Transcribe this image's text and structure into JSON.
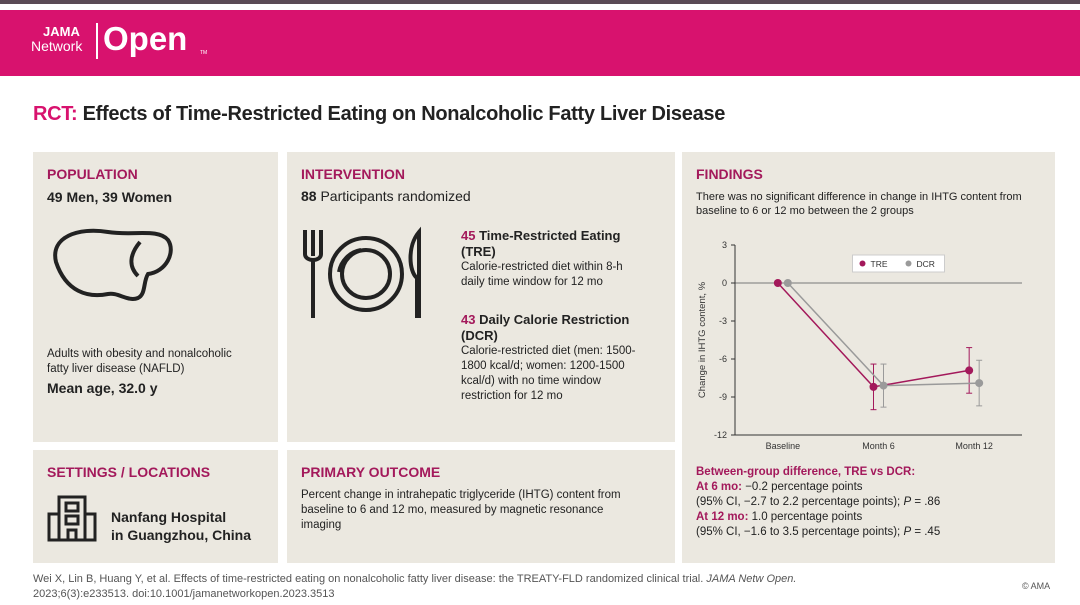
{
  "header": {
    "logo_top": "JAMA",
    "logo_bottom": "Network",
    "logo_main": "Open",
    "logo_tm": "TM"
  },
  "title": {
    "prefix": "RCT:",
    "text": "Effects of Time-Restricted Eating on Nonalcoholic Fatty Liver Disease"
  },
  "population": {
    "heading": "POPULATION",
    "counts": "49 Men, 39 Women",
    "description": "Adults with obesity and nonalcoholic fatty liver disease (NAFLD)",
    "mean_age": "Mean age, 32.0 y"
  },
  "intervention": {
    "heading": "INTERVENTION",
    "randomized_n": "88",
    "randomized_text": "Participants randomized",
    "groups": [
      {
        "n": "45",
        "name": "Time-Restricted Eating (TRE)",
        "description": "Calorie-restricted diet within 8-h daily time window for 12 mo"
      },
      {
        "n": "43",
        "name": "Daily Calorie Restriction (DCR)",
        "description": "Calorie-restricted diet (men: 1500-1800 kcal/d; women: 1200-1500 kcal/d) with no time window restriction for 12 mo"
      }
    ]
  },
  "findings": {
    "heading": "FINDINGS",
    "summary": "There was no significant difference in change in IHTG content from baseline to 6 or 12 mo between the 2 groups",
    "difference_heading": "Between-group difference, TRE vs DCR:",
    "results": [
      {
        "label": "At 6 mo:",
        "text": "−0.2 percentage points",
        "ci": "(95% CI, −2.7 to 2.2 percentage points);",
        "p": "P",
        "p_value": "= .86"
      },
      {
        "label": "At 12 mo:",
        "text": "1.0 percentage points",
        "ci": "(95% CI, −1.6 to 3.5 percentage points);",
        "p": "P",
        "p_value": "= .45"
      }
    ]
  },
  "settings": {
    "heading": "SETTINGS / LOCATIONS",
    "location": [
      "Nanfang Hospital",
      "in Guangzhou, China"
    ]
  },
  "outcome": {
    "heading": "PRIMARY OUTCOME",
    "text": "Percent change in intrahepatic triglyceride (IHTG) content from baseline to 6 and 12 mo, measured by magnetic resonance imaging"
  },
  "citation": {
    "text": "Wei X, Lin B, Huang Y, et al. Effects of time-restricted eating on nonalcoholic fatty liver disease: the TREATY-FLD randomized clinical trial.",
    "journal": "JAMA Netw Open.",
    "details": "2023;6(3):e233513. doi:10.1001/jamanetworkopen.2023.3513",
    "copyright": "© AMA"
  },
  "chart_data": {
    "type": "line",
    "y_label": "Change in IHTG content, %",
    "categories": [
      "Baseline",
      "Month 6",
      "Month 12"
    ],
    "series": [
      {
        "name": "TRE",
        "color": "#a3195b",
        "values": [
          0,
          -8.2,
          -6.9
        ],
        "errors": [
          null,
          1.8,
          1.8
        ]
      },
      {
        "name": "DCR",
        "color": "#9a9a9a",
        "values": [
          0,
          -8.1,
          -7.9
        ],
        "errors": [
          null,
          1.7,
          1.8
        ]
      }
    ],
    "ylim": [
      -12,
      3
    ],
    "yticks": [
      3,
      0,
      -3,
      -6,
      -9,
      -12
    ],
    "legend": "top"
  }
}
